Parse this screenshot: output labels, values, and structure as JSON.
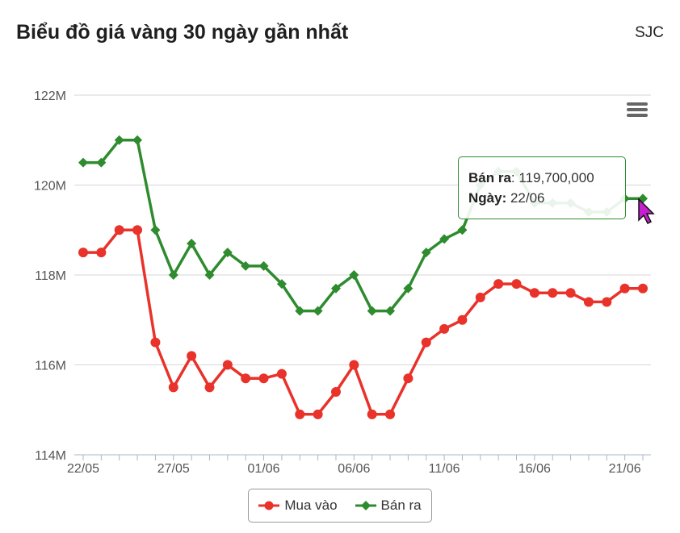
{
  "header": {
    "title": "Biểu đồ giá vàng 30 ngày gần nhất",
    "source": "SJC"
  },
  "chart_data": {
    "type": "line",
    "x": [
      "22/05",
      "23/05",
      "24/05",
      "25/05",
      "26/05",
      "27/05",
      "28/05",
      "29/05",
      "30/05",
      "31/05",
      "01/06",
      "02/06",
      "03/06",
      "04/06",
      "05/06",
      "06/06",
      "07/06",
      "08/06",
      "09/06",
      "10/06",
      "11/06",
      "12/06",
      "13/06",
      "14/06",
      "15/06",
      "16/06",
      "17/06",
      "18/06",
      "19/06",
      "20/06",
      "21/06",
      "22/06"
    ],
    "x_tick_labels": [
      "22/05",
      "27/05",
      "01/06",
      "06/06",
      "11/06",
      "16/06",
      "21/06"
    ],
    "y_tick_labels": [
      "114M",
      "116M",
      "118M",
      "120M",
      "122M"
    ],
    "ylim": [
      114000000,
      122000000
    ],
    "grid": true,
    "legend_position": "bottom",
    "series": [
      {
        "name": "Mua vào",
        "color": "#e8322a",
        "marker": "circle",
        "values": [
          118500000,
          118500000,
          119000000,
          119000000,
          116500000,
          115500000,
          116200000,
          115500000,
          116000000,
          115700000,
          115700000,
          115800000,
          114900000,
          114900000,
          115400000,
          116000000,
          114900000,
          114900000,
          115700000,
          116500000,
          116800000,
          117000000,
          117500000,
          117800000,
          117800000,
          117600000,
          117600000,
          117600000,
          117400000,
          117400000,
          117700000,
          117700000
        ]
      },
      {
        "name": "Bán ra",
        "color": "#2e8b2e",
        "marker": "diamond",
        "values": [
          120500000,
          120500000,
          121000000,
          121000000,
          119000000,
          118000000,
          118700000,
          118000000,
          118500000,
          118200000,
          118200000,
          117800000,
          117200000,
          117200000,
          117700000,
          118000000,
          117200000,
          117200000,
          117700000,
          118500000,
          118800000,
          119000000,
          120000000,
          120300000,
          120300000,
          119600000,
          119600000,
          119600000,
          119400000,
          119400000,
          119700000,
          119700000
        ]
      }
    ]
  },
  "tooltip": {
    "series_label": "Bán ra",
    "value": "119,700,000",
    "date_label": "Ngày:",
    "date_value": "22/06"
  }
}
